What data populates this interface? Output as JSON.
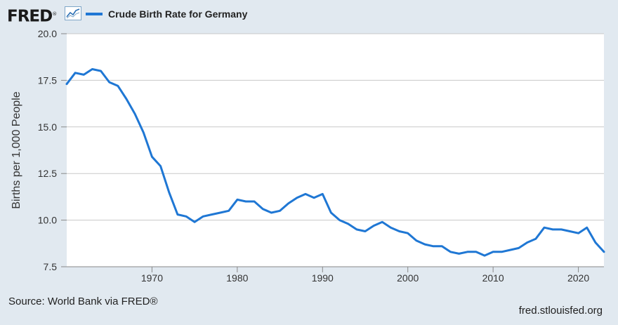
{
  "header": {
    "logo_text": "FRED",
    "logo_mark": "®",
    "logo_icon": "line-chart-icon"
  },
  "footer": {
    "source": "Source: World Bank via FRED®",
    "site": "fred.stlouisfed.org"
  },
  "colors": {
    "series": "#1f77d4",
    "background": "#e1e9f0",
    "plot_background": "#ffffff",
    "grid": "#c8c8c8"
  },
  "chart_data": {
    "type": "line",
    "title": "",
    "xlabel": "",
    "ylabel": "Births per 1,000 People",
    "xlim": [
      1960,
      2023
    ],
    "ylim": [
      7.5,
      20.0
    ],
    "yticks": [
      7.5,
      10.0,
      12.5,
      15.0,
      17.5,
      20.0
    ],
    "ytick_labels": [
      "7.5",
      "10.0",
      "12.5",
      "15.0",
      "17.5",
      "20.0"
    ],
    "xticks": [
      1970,
      1980,
      1990,
      2000,
      2010,
      2020
    ],
    "xtick_labels": [
      "1970",
      "1980",
      "1990",
      "2000",
      "2010",
      "2020"
    ],
    "grid": true,
    "legend_position": "top-left",
    "series": [
      {
        "name": "Crude Birth Rate for Germany",
        "x": [
          1960,
          1961,
          1962,
          1963,
          1964,
          1965,
          1966,
          1967,
          1968,
          1969,
          1970,
          1971,
          1972,
          1973,
          1974,
          1975,
          1976,
          1977,
          1978,
          1979,
          1980,
          1981,
          1982,
          1983,
          1984,
          1985,
          1986,
          1987,
          1988,
          1989,
          1990,
          1991,
          1992,
          1993,
          1994,
          1995,
          1996,
          1997,
          1998,
          1999,
          2000,
          2001,
          2002,
          2003,
          2004,
          2005,
          2006,
          2007,
          2008,
          2009,
          2010,
          2011,
          2012,
          2013,
          2014,
          2015,
          2016,
          2017,
          2018,
          2019,
          2020,
          2021,
          2022,
          2023
        ],
        "values": [
          17.3,
          17.9,
          17.8,
          18.1,
          18.0,
          17.4,
          17.2,
          16.5,
          15.7,
          14.7,
          13.4,
          12.9,
          11.5,
          10.3,
          10.2,
          9.9,
          10.2,
          10.3,
          10.4,
          10.5,
          11.1,
          11.0,
          11.0,
          10.6,
          10.4,
          10.5,
          10.9,
          11.2,
          11.4,
          11.2,
          11.4,
          10.4,
          10.0,
          9.8,
          9.5,
          9.4,
          9.7,
          9.9,
          9.6,
          9.4,
          9.3,
          8.9,
          8.7,
          8.6,
          8.6,
          8.3,
          8.2,
          8.3,
          8.3,
          8.1,
          8.3,
          8.3,
          8.4,
          8.5,
          8.8,
          9.0,
          9.6,
          9.5,
          9.5,
          9.4,
          9.3,
          9.6,
          8.8,
          8.3
        ]
      }
    ]
  }
}
